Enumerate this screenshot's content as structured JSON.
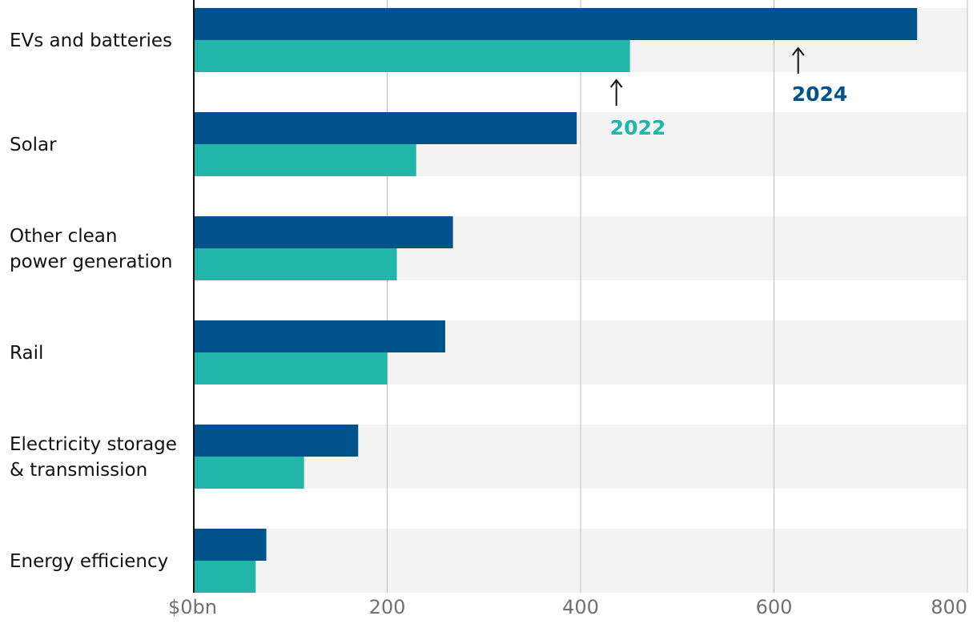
{
  "chart_data": {
    "type": "bar",
    "orientation": "horizontal",
    "categories": [
      [
        "EVs and batteries"
      ],
      [
        "Solar"
      ],
      [
        "Other clean",
        "power generation"
      ],
      [
        "Rail"
      ],
      [
        "Electricity storage",
        "& transmission"
      ],
      [
        "Energy efficiency"
      ]
    ],
    "series": [
      {
        "name": "2024",
        "color": "#00538a",
        "values": [
          748,
          396,
          268,
          260,
          170,
          75
        ]
      },
      {
        "name": "2022",
        "color": "#22b5a9",
        "values": [
          451,
          230,
          210,
          200,
          114,
          64
        ]
      }
    ],
    "xlim": [
      0,
      800
    ],
    "xticks": [
      {
        "value": 0,
        "label": "$0bn"
      },
      {
        "value": 200,
        "label": "200"
      },
      {
        "value": 400,
        "label": "400"
      },
      {
        "value": 600,
        "label": "600"
      },
      {
        "value": 800,
        "label": "800"
      }
    ],
    "grid": true,
    "legend": "inline annotations with arrows"
  }
}
